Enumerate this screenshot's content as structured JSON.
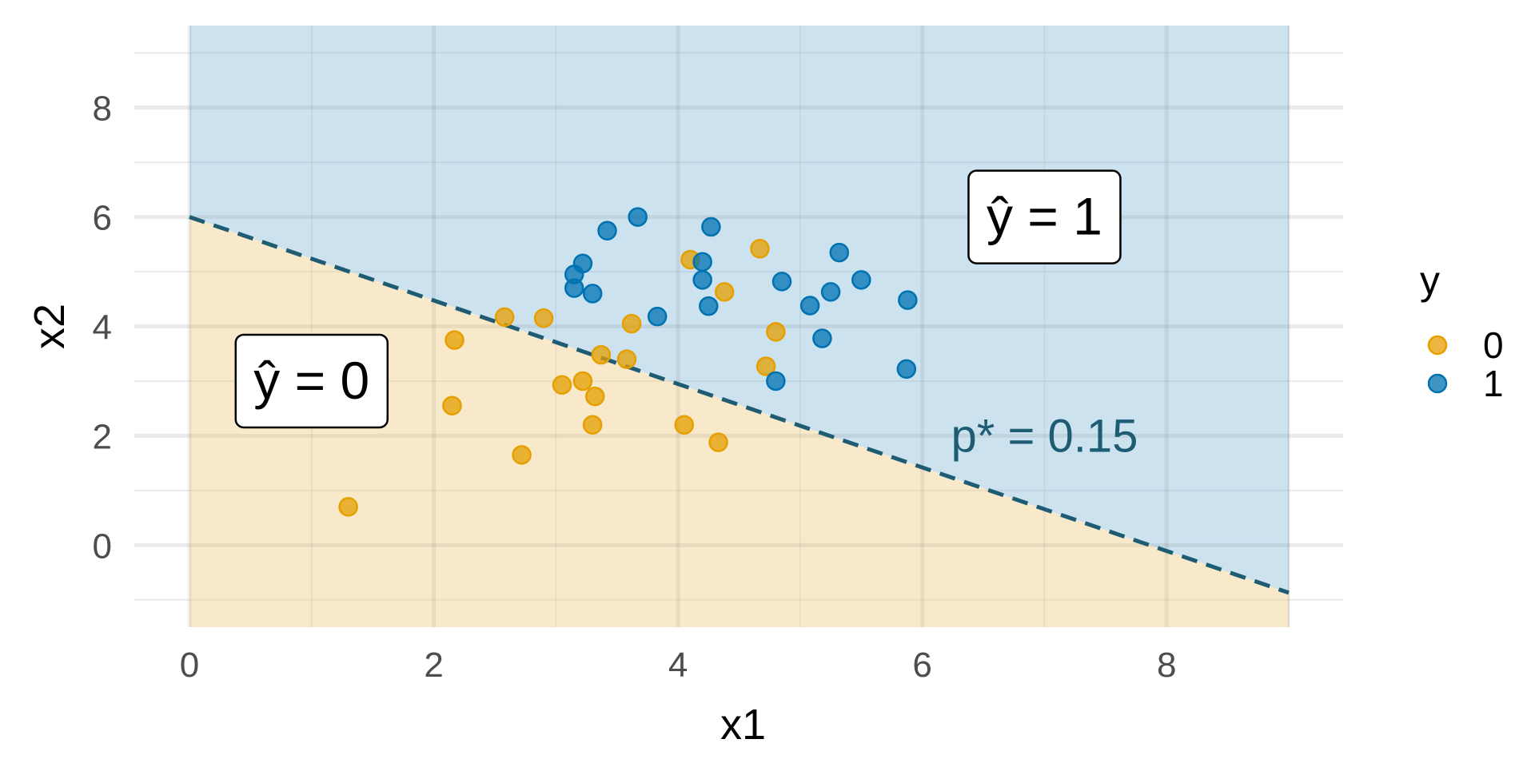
{
  "chart_data": {
    "type": "scatter",
    "xlabel": "x1",
    "ylabel": "x2",
    "xlim": [
      0,
      9
    ],
    "ylim": [
      -1.5,
      9.5
    ],
    "x_ticks": [
      0,
      2,
      4,
      6,
      8
    ],
    "y_ticks": [
      0,
      2,
      4,
      6,
      8
    ],
    "grid": true,
    "legend": {
      "title": "y",
      "position": "right",
      "entries": [
        "0",
        "1"
      ]
    },
    "colors": {
      "class_0": "#E69F00",
      "class_1": "#0072B2",
      "region_0": "#F8E9CB",
      "region_1": "#CCE2EF",
      "boundary": "#1D5C73"
    },
    "decision_boundary": {
      "style": "dashed",
      "label": "p* = 0.15",
      "line": [
        [
          0,
          6.0
        ],
        [
          9,
          -0.87
        ]
      ]
    },
    "region_labels": {
      "class_0": "ŷ = 0",
      "class_1": "ŷ = 1"
    },
    "series": [
      {
        "name": "0",
        "points": [
          [
            1.3,
            0.7
          ],
          [
            2.15,
            2.55
          ],
          [
            2.17,
            3.75
          ],
          [
            2.72,
            1.65
          ],
          [
            2.58,
            4.17
          ],
          [
            2.9,
            4.15
          ],
          [
            3.05,
            2.93
          ],
          [
            3.22,
            3.0
          ],
          [
            3.32,
            2.72
          ],
          [
            3.3,
            2.2
          ],
          [
            3.37,
            3.48
          ],
          [
            3.58,
            3.4
          ],
          [
            3.62,
            4.05
          ],
          [
            4.05,
            2.2
          ],
          [
            4.1,
            5.22
          ],
          [
            4.33,
            1.88
          ],
          [
            4.38,
            4.63
          ],
          [
            4.67,
            5.42
          ],
          [
            4.72,
            3.27
          ],
          [
            4.8,
            3.9
          ]
        ]
      },
      {
        "name": "1",
        "points": [
          [
            3.15,
            4.95
          ],
          [
            3.15,
            4.7
          ],
          [
            3.22,
            5.15
          ],
          [
            3.3,
            4.6
          ],
          [
            3.42,
            5.75
          ],
          [
            3.67,
            6.0
          ],
          [
            3.83,
            4.18
          ],
          [
            4.2,
            5.18
          ],
          [
            4.2,
            4.85
          ],
          [
            4.25,
            4.37
          ],
          [
            4.27,
            5.82
          ],
          [
            4.8,
            3.0
          ],
          [
            4.85,
            4.82
          ],
          [
            5.08,
            4.38
          ],
          [
            5.18,
            3.78
          ],
          [
            5.25,
            4.63
          ],
          [
            5.32,
            5.35
          ],
          [
            5.5,
            4.85
          ],
          [
            5.87,
            3.22
          ],
          [
            5.88,
            4.48
          ]
        ]
      }
    ]
  }
}
